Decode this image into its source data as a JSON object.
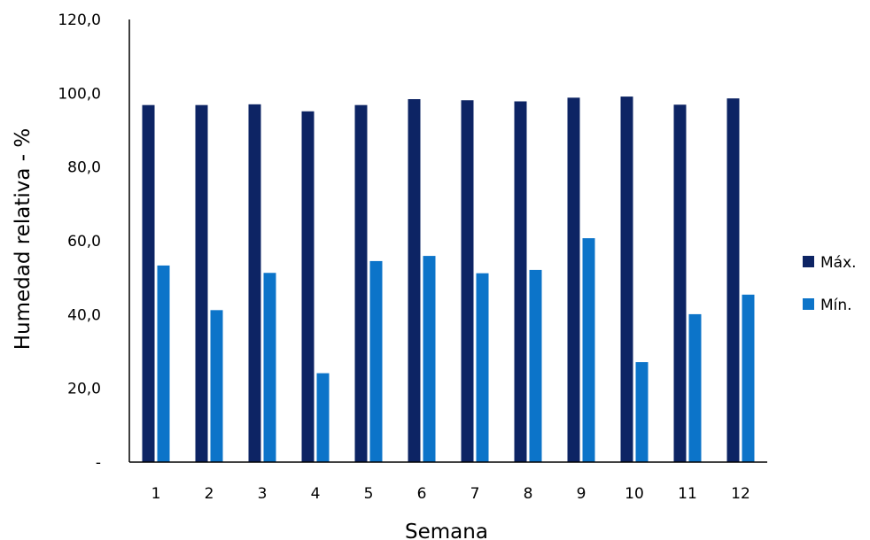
{
  "chart_data": {
    "type": "bar",
    "title": "",
    "xlabel": "Semana",
    "ylabel": "Humedad relativa - %",
    "categories": [
      "1",
      "2",
      "3",
      "4",
      "5",
      "6",
      "7",
      "8",
      "9",
      "10",
      "11",
      "12"
    ],
    "ylim": [
      0,
      120
    ],
    "yticks": [
      {
        "value": 0,
        "label": "-"
      },
      {
        "value": 20,
        "label": "20,0"
      },
      {
        "value": 40,
        "label": "40,0"
      },
      {
        "value": 60,
        "label": "60,0"
      },
      {
        "value": 80,
        "label": "80,0"
      },
      {
        "value": 100,
        "label": "100,0"
      },
      {
        "value": 120,
        "label": "120,0"
      }
    ],
    "series": [
      {
        "name": "Máx.",
        "color": "#0d2464",
        "values": [
          96.8,
          96.8,
          97.0,
          95.1,
          96.8,
          98.4,
          98.1,
          97.8,
          98.8,
          99.1,
          96.9,
          98.6
        ]
      },
      {
        "name": "Mín.",
        "color": "#0c74c9",
        "values": [
          53.3,
          41.2,
          51.3,
          24.1,
          54.5,
          55.9,
          51.2,
          52.1,
          60.7,
          27.1,
          40.1,
          45.4
        ]
      }
    ],
    "grid": false,
    "legend": "right"
  }
}
